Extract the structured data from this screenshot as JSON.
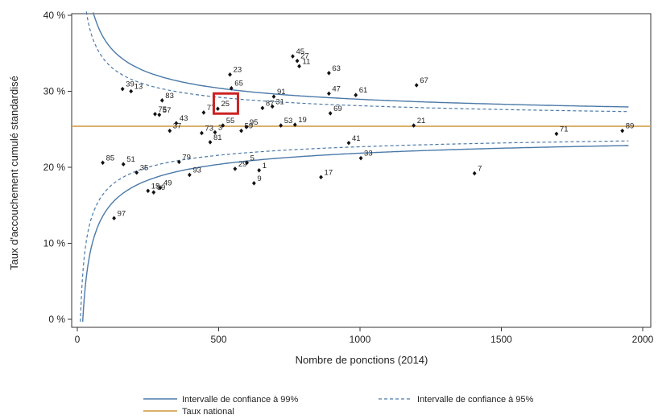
{
  "chart_data": {
    "type": "scatter",
    "xlabel": "Nombre de ponctions (2014)",
    "ylabel": "Taux d'accouchement cumulé standardisé",
    "xlim": [
      0,
      2000
    ],
    "ylim": [
      0,
      40
    ],
    "x_ticks": [
      0,
      500,
      1000,
      1500,
      2000
    ],
    "y_ticks": [
      0,
      10,
      20,
      30,
      40
    ],
    "y_tick_labels": [
      "0 %",
      "10 %",
      "20 %",
      "30 %",
      "40 %"
    ],
    "grid": false,
    "national_rate": 25.4,
    "highlighted": "25",
    "colors": {
      "ci": "#4a79a8",
      "national": "#d4a556",
      "points": "#111111",
      "highlight": "#cc2222"
    },
    "legend": {
      "placement": "bottom",
      "ci99": "Intervalle de confiance à 99%",
      "ci95": "Intervalle de confiance à 95%",
      "national": "Taux national"
    },
    "points": [
      {
        "label": "45",
        "x": 762,
        "y": 34.6
      },
      {
        "label": "27",
        "x": 778,
        "y": 34.0
      },
      {
        "label": "11",
        "x": 785,
        "y": 33.3
      },
      {
        "label": "63",
        "x": 890,
        "y": 32.4
      },
      {
        "label": "23",
        "x": 540,
        "y": 32.2
      },
      {
        "label": "67",
        "x": 1200,
        "y": 30.8
      },
      {
        "label": "65",
        "x": 545,
        "y": 30.4
      },
      {
        "label": "39",
        "x": 160,
        "y": 30.3
      },
      {
        "label": "13",
        "x": 190,
        "y": 30.0
      },
      {
        "label": "47",
        "x": 890,
        "y": 29.7
      },
      {
        "label": "61",
        "x": 985,
        "y": 29.5
      },
      {
        "label": "91",
        "x": 695,
        "y": 29.3
      },
      {
        "label": "83",
        "x": 300,
        "y": 28.8
      },
      {
        "label": "31",
        "x": 690,
        "y": 28.0
      },
      {
        "label": "87",
        "x": 655,
        "y": 27.8
      },
      {
        "label": "25",
        "x": 497,
        "y": 27.7
      },
      {
        "label": "77",
        "x": 447,
        "y": 27.2
      },
      {
        "label": "69",
        "x": 895,
        "y": 27.1
      },
      {
        "label": "75",
        "x": 275,
        "y": 27.0
      },
      {
        "label": "57",
        "x": 290,
        "y": 26.9
      },
      {
        "label": "43",
        "x": 350,
        "y": 25.8
      },
      {
        "label": "19",
        "x": 770,
        "y": 25.6
      },
      {
        "label": "53",
        "x": 720,
        "y": 25.5
      },
      {
        "label": "21",
        "x": 1190,
        "y": 25.5
      },
      {
        "label": "55",
        "x": 515,
        "y": 25.5
      },
      {
        "label": "95",
        "x": 598,
        "y": 25.3
      },
      {
        "label": "37",
        "x": 327,
        "y": 24.8
      },
      {
        "label": "59",
        "x": 580,
        "y": 24.8
      },
      {
        "label": "3",
        "x": 487,
        "y": 24.6
      },
      {
        "label": "73",
        "x": 440,
        "y": 24.5
      },
      {
        "label": "89",
        "x": 1928,
        "y": 24.8
      },
      {
        "label": "71",
        "x": 1695,
        "y": 24.4
      },
      {
        "label": "81",
        "x": 470,
        "y": 23.3
      },
      {
        "label": "41",
        "x": 960,
        "y": 23.2
      },
      {
        "label": "33",
        "x": 1003,
        "y": 21.2
      },
      {
        "label": "85",
        "x": 90,
        "y": 20.6
      },
      {
        "label": "5",
        "x": 600,
        "y": 20.6
      },
      {
        "label": "51",
        "x": 163,
        "y": 20.4
      },
      {
        "label": "79",
        "x": 360,
        "y": 20.7
      },
      {
        "label": "29",
        "x": 558,
        "y": 19.8
      },
      {
        "label": "1",
        "x": 643,
        "y": 19.6
      },
      {
        "label": "35",
        "x": 210,
        "y": 19.3
      },
      {
        "label": "93",
        "x": 397,
        "y": 19.0
      },
      {
        "label": "7",
        "x": 1405,
        "y": 19.2
      },
      {
        "label": "17",
        "x": 862,
        "y": 18.7
      },
      {
        "label": "9",
        "x": 625,
        "y": 17.9
      },
      {
        "label": "49",
        "x": 293,
        "y": 17.3
      },
      {
        "label": "15",
        "x": 250,
        "y": 16.9
      },
      {
        "label": "99",
        "x": 270,
        "y": 16.7
      },
      {
        "label": "97",
        "x": 130,
        "y": 13.3
      }
    ]
  }
}
